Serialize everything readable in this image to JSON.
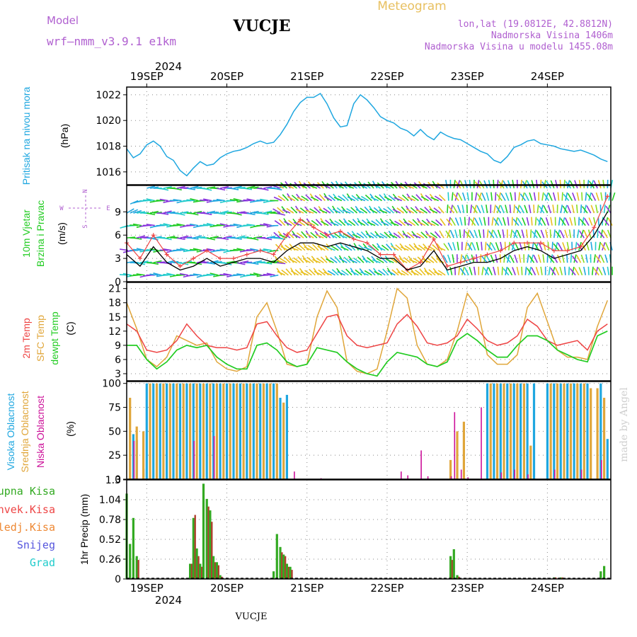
{
  "header": {
    "model_label": "Model",
    "model_name": "wrf—nmm_v3.9.1  e1km",
    "station": "VUCJE",
    "title": "Meteogram",
    "coords": "lon,lat (19.0812E, 42.8812N)",
    "altitude": "Nadmorska Visina 1406m",
    "model_altitude": "Nadmorska Visina u modelu 1455.08m",
    "footer_station": "VUCJE",
    "watermark": "made by Angel"
  },
  "colors": {
    "pressure": "#1fa7e0",
    "t2m": "#ee4444",
    "sfc": "#e0a63a",
    "dewpt": "#22cc22",
    "high_cloud": "#1fa7e0",
    "mid_cloud": "#e0a63a",
    "low_cloud": "#cc1199",
    "total_precip": "#33aa22",
    "conv_precip": "#ee4444",
    "frz_precip": "#ee8833",
    "snow": "#5555dd",
    "hail": "#22cccc",
    "wind_speed": "#000000",
    "wind_gust": "#ee4444",
    "purple": "#b060d0",
    "orange": "#e8c060"
  },
  "time_axis": {
    "year": "2024",
    "days": [
      "19SEP",
      "20SEP",
      "21SEP",
      "22SEP",
      "23SEP",
      "24SEP"
    ],
    "start_hour_offset": -6,
    "end_hour_offset": 139
  },
  "chart_data": [
    {
      "type": "line",
      "name": "pressure",
      "ylabels": [
        "Pritisak na nivou mora",
        "(hPa)"
      ],
      "yticks": [
        1016,
        1018,
        1020,
        1022
      ],
      "ylim": [
        1015,
        1022.6
      ],
      "x_hours": [
        -6,
        -4,
        -2,
        0,
        2,
        4,
        6,
        8,
        10,
        12,
        14,
        16,
        18,
        20,
        22,
        24,
        26,
        28,
        30,
        32,
        34,
        36,
        38,
        40,
        42,
        44,
        46,
        48,
        50,
        52,
        54,
        56,
        58,
        60,
        62,
        64,
        66,
        68,
        70,
        72,
        74,
        76,
        78,
        80,
        82,
        84,
        86,
        88,
        90,
        92,
        94,
        96,
        98,
        100,
        102,
        104,
        106,
        108,
        110,
        112,
        114,
        116,
        118,
        120,
        122,
        124,
        126,
        128,
        130,
        132,
        134,
        136,
        138
      ],
      "values": [
        1017.8,
        1017.1,
        1017.4,
        1018.1,
        1018.4,
        1018.0,
        1017.2,
        1016.9,
        1016.1,
        1015.7,
        1016.3,
        1016.8,
        1016.5,
        1016.6,
        1017.1,
        1017.4,
        1017.6,
        1017.7,
        1017.9,
        1018.2,
        1018.4,
        1018.2,
        1018.3,
        1018.9,
        1019.7,
        1020.7,
        1021.4,
        1021.8,
        1021.8,
        1022.1,
        1021.3,
        1020.2,
        1019.5,
        1019.6,
        1021.3,
        1022.0,
        1021.6,
        1021.0,
        1020.3,
        1020.0,
        1019.8,
        1019.4,
        1019.2,
        1018.8,
        1019.3,
        1018.8,
        1018.5,
        1019.1,
        1018.8,
        1018.6,
        1018.5,
        1018.2,
        1017.9,
        1017.6,
        1017.4,
        1016.9,
        1016.7,
        1017.2,
        1017.9,
        1018.1,
        1018.4,
        1018.5,
        1018.2,
        1018.1,
        1018.0,
        1017.8,
        1017.7,
        1017.6,
        1017.7,
        1017.5,
        1017.3,
        1017.0,
        1016.8
      ]
    },
    {
      "type": "line",
      "name": "wind",
      "ylabels": [
        "10m Vjetar",
        "Brzina i Pravac",
        "(m/s)"
      ],
      "yticks": [
        0,
        3,
        6,
        9
      ],
      "ylim": [
        0,
        12.4
      ],
      "compass": [
        "N",
        "W",
        "E",
        "S"
      ],
      "x_hours": [
        -6,
        -2,
        2,
        6,
        10,
        14,
        18,
        22,
        26,
        30,
        34,
        38,
        42,
        46,
        50,
        54,
        58,
        62,
        66,
        70,
        74,
        78,
        82,
        86,
        90,
        94,
        98,
        102,
        106,
        110,
        114,
        118,
        122,
        126,
        130,
        134,
        138
      ],
      "speed": [
        3.5,
        2.0,
        4.5,
        2.5,
        1.5,
        2.0,
        3.0,
        2.0,
        2.5,
        3.0,
        3.0,
        2.5,
        4.0,
        5.0,
        5.0,
        4.5,
        5.0,
        4.5,
        4.0,
        3.0,
        3.0,
        1.5,
        2.0,
        4.0,
        1.5,
        2.0,
        2.5,
        2.5,
        3.0,
        4.0,
        4.5,
        4.0,
        3.0,
        3.5,
        4.0,
        6.0,
        9.0
      ],
      "gust": [
        5.0,
        3.0,
        6.0,
        3.5,
        2.0,
        3.0,
        4.0,
        3.0,
        3.0,
        3.5,
        4.0,
        3.5,
        6.0,
        8.0,
        7.0,
        6.0,
        6.5,
        5.5,
        5.0,
        3.5,
        3.5,
        1.5,
        2.5,
        5.5,
        2.0,
        2.5,
        3.0,
        3.5,
        4.0,
        5.0,
        5.0,
        5.0,
        4.0,
        4.0,
        4.5,
        7.0,
        11.0
      ]
    },
    {
      "type": "line",
      "name": "temperature",
      "ylabels": [
        "2m Temp",
        "SFC Temp",
        "dewpt Temp",
        "(C)"
      ],
      "yticks": [
        3,
        6,
        9,
        12,
        15,
        18,
        21
      ],
      "ylim": [
        1.5,
        22.3
      ],
      "x_hours": [
        -6,
        -3,
        0,
        3,
        6,
        9,
        12,
        15,
        18,
        21,
        24,
        27,
        30,
        33,
        36,
        39,
        42,
        45,
        48,
        51,
        54,
        57,
        60,
        63,
        66,
        69,
        72,
        75,
        78,
        81,
        84,
        87,
        90,
        93,
        96,
        99,
        102,
        105,
        108,
        111,
        114,
        117,
        120,
        123,
        126,
        129,
        132,
        135,
        138
      ],
      "t2m": [
        13.5,
        12.0,
        8.0,
        7.5,
        8.0,
        10.0,
        13.5,
        11.0,
        9.0,
        8.5,
        8.5,
        8.0,
        8.5,
        13.5,
        14.0,
        11.0,
        8.5,
        7.5,
        8.0,
        11.5,
        15.0,
        15.5,
        11.0,
        9.0,
        8.5,
        9.0,
        9.5,
        13.5,
        15.5,
        13.0,
        9.5,
        9.0,
        9.5,
        11.0,
        14.5,
        12.5,
        10.0,
        9.0,
        9.5,
        11.0,
        14.5,
        13.0,
        10.0,
        9.0,
        9.5,
        10.0,
        8.0,
        12.0,
        13.5
      ],
      "sfc": [
        18.0,
        12.5,
        6.0,
        4.5,
        6.5,
        11.0,
        10.0,
        9.0,
        9.5,
        5.5,
        4.0,
        3.5,
        4.5,
        15.0,
        18.0,
        12.0,
        5.0,
        4.5,
        5.0,
        15.0,
        20.5,
        17.0,
        5.5,
        3.5,
        3.0,
        4.0,
        12.0,
        21.0,
        19.0,
        9.0,
        5.0,
        4.5,
        6.0,
        12.0,
        20.0,
        17.0,
        7.0,
        5.0,
        5.0,
        7.0,
        17.0,
        20.0,
        14.0,
        8.0,
        6.5,
        6.5,
        6.0,
        13.0,
        18.5
      ],
      "dewpt": [
        9.0,
        9.0,
        6.0,
        4.0,
        5.5,
        8.0,
        9.0,
        8.5,
        9.0,
        6.5,
        5.0,
        4.0,
        4.0,
        9.0,
        9.5,
        8.0,
        5.5,
        4.5,
        5.0,
        8.5,
        8.0,
        7.5,
        5.5,
        4.0,
        3.0,
        2.5,
        5.5,
        7.5,
        7.0,
        6.5,
        5.0,
        4.5,
        5.5,
        10.0,
        11.5,
        10.0,
        8.0,
        6.5,
        6.5,
        9.0,
        11.0,
        11.0,
        10.0,
        8.0,
        7.0,
        6.0,
        5.5,
        11.0,
        12.0
      ]
    },
    {
      "type": "bar",
      "name": "clouds",
      "ylabels": [
        "Visoka Oblacnost",
        "Srednja Oblacnost",
        "Niska Oblacnost",
        "(%)"
      ],
      "yticks": [
        0,
        25,
        50,
        75,
        100
      ],
      "ylim": [
        0,
        102
      ],
      "series": [
        {
          "name": "Visoka Oblacnost",
          "x_hours": [
            -4,
            -3,
            -1,
            0,
            2,
            4,
            6,
            8,
            10,
            12,
            14,
            16,
            18,
            20,
            22,
            24,
            26,
            28,
            30,
            32,
            34,
            36,
            38,
            40,
            42,
            102,
            104,
            106,
            108,
            110,
            112,
            114,
            116,
            120,
            122,
            124,
            126,
            128,
            130,
            132,
            136,
            138
          ],
          "values": [
            47,
            41,
            11,
            100,
            100,
            100,
            100,
            100,
            100,
            100,
            100,
            100,
            100,
            100,
            100,
            100,
            100,
            100,
            100,
            100,
            100,
            100,
            100,
            85,
            88,
            100,
            100,
            100,
            100,
            100,
            100,
            100,
            100,
            100,
            100,
            100,
            100,
            100,
            100,
            100,
            100,
            42
          ]
        },
        {
          "name": "Srednja Oblacnost",
          "x_hours": [
            -5,
            -3,
            -1,
            1,
            3,
            5,
            7,
            9,
            11,
            13,
            15,
            17,
            19,
            21,
            23,
            25,
            27,
            29,
            31,
            33,
            35,
            37,
            39,
            41,
            91,
            93,
            95,
            103,
            105,
            107,
            109,
            111,
            113,
            115,
            121,
            123,
            125,
            127,
            129,
            131,
            133,
            135,
            137
          ],
          "values": [
            85,
            55,
            50,
            100,
            100,
            100,
            100,
            100,
            100,
            100,
            100,
            100,
            100,
            100,
            100,
            100,
            100,
            100,
            100,
            100,
            100,
            100,
            100,
            80,
            20,
            50,
            60,
            100,
            100,
            100,
            100,
            100,
            100,
            35,
            100,
            100,
            100,
            100,
            100,
            100,
            95,
            95,
            85
          ]
        },
        {
          "name": "Niska Oblacnost",
          "x_hours": [
            -4,
            14,
            20,
            44,
            52,
            76,
            78,
            82,
            84,
            91,
            92,
            94,
            96,
            100,
            106,
            110,
            114,
            122,
            130,
            136
          ],
          "values": [
            40,
            40,
            45,
            8,
            1,
            8,
            4,
            30,
            3,
            3,
            70,
            10,
            2,
            75,
            7,
            10,
            5,
            10,
            10,
            20
          ]
        }
      ]
    },
    {
      "type": "bar",
      "name": "precipitation",
      "ylabels": [
        "1hr Precip (mm)"
      ],
      "series_labels": [
        "Ukupna Kisa",
        "Konvek.Kisa",
        "Zaledj.Kisa",
        "Snijeg",
        "Grad"
      ],
      "yticks": [
        0,
        0.26,
        0.52,
        0.78,
        1.04,
        1.3
      ],
      "ylim": [
        0,
        1.3
      ],
      "x_hours": [
        -6,
        -5,
        -4,
        -3,
        13,
        14,
        15,
        16,
        17,
        18,
        19,
        20,
        21,
        22,
        38,
        39,
        40,
        41,
        42,
        43,
        91,
        92,
        93,
        122,
        124,
        136,
        137
      ],
      "total": [
        1.12,
        0.46,
        0.8,
        0.3,
        0.2,
        0.8,
        0.4,
        0.2,
        1.25,
        1.05,
        0.9,
        0.3,
        0.22,
        0.05,
        0.1,
        0.59,
        0.42,
        0.32,
        0.2,
        0.16,
        0.3,
        0.39,
        0.05,
        0.02,
        0.02,
        0.1,
        0.17
      ],
      "convective": [
        0.0,
        0.0,
        0.0,
        0.25,
        0.2,
        0.84,
        0.3,
        0.16,
        0.0,
        0.95,
        0.75,
        0.22,
        0.18,
        0.03,
        0.0,
        0.0,
        0.35,
        0.3,
        0.16,
        0.12,
        0.25,
        0.0,
        0.03,
        0.02,
        0.02,
        0.0,
        0.0
      ]
    }
  ]
}
